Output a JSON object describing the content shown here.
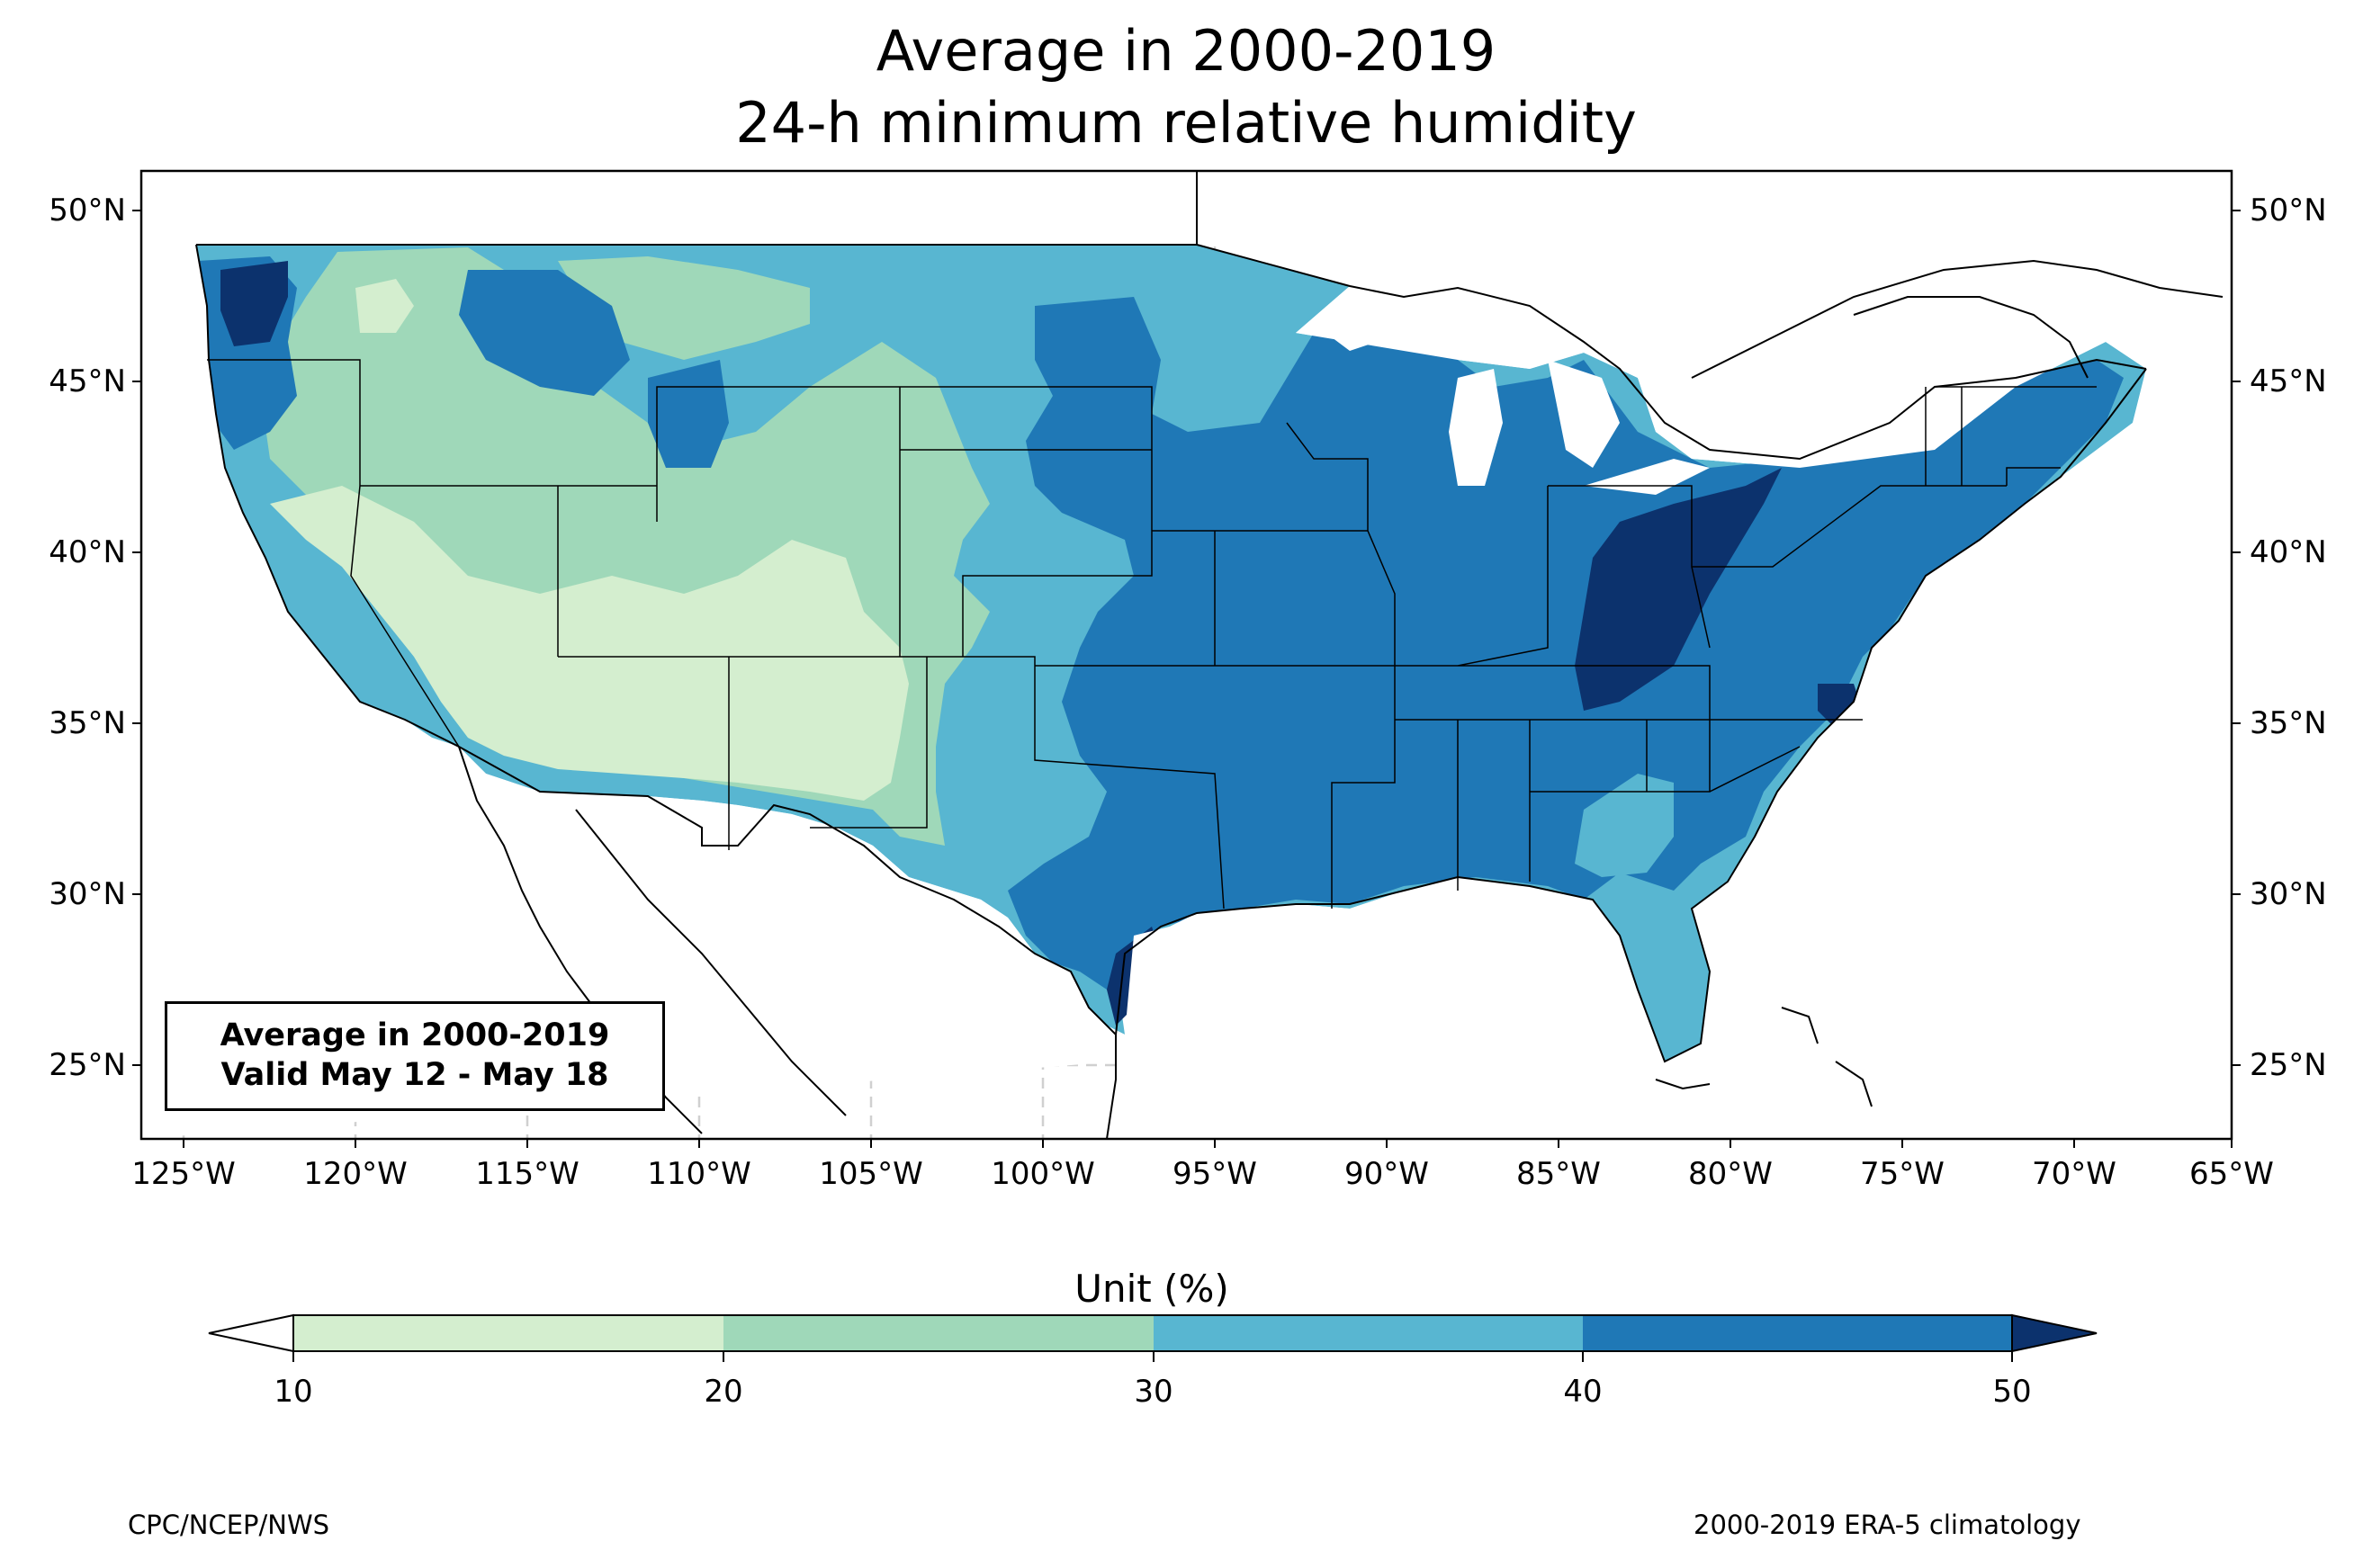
{
  "title": {
    "line1": "Average in 2000-2019",
    "line2": "24-h minimum relative humidity"
  },
  "map": {
    "lat_labels": [
      "50°N",
      "45°N",
      "40°N",
      "35°N",
      "30°N",
      "25°N"
    ],
    "lon_labels": [
      "125°W",
      "120°W",
      "115°W",
      "110°W",
      "105°W",
      "100°W",
      "95°W",
      "90°W",
      "85°W",
      "80°W",
      "75°W",
      "70°W",
      "65°W"
    ],
    "gridlines": true,
    "info_box": {
      "line1": "Average in 2000-2019",
      "line2": "Valid May 12 - May 18"
    }
  },
  "colorbar": {
    "title": "Unit (%)",
    "ticks": [
      "10",
      "20",
      "30",
      "40",
      "50"
    ],
    "colors": {
      "below_10": "#ffffff",
      "10_20": "#d4eecf",
      "20_30": "#9fd8b9",
      "30_40": "#58b6d1",
      "40_50": "#1f78b6",
      "above_50": "#0c326d"
    },
    "extend": "both"
  },
  "footer": {
    "left": "CPC/NCEP/NWS",
    "right": "2000-2019 ERA-5 climatology"
  }
}
